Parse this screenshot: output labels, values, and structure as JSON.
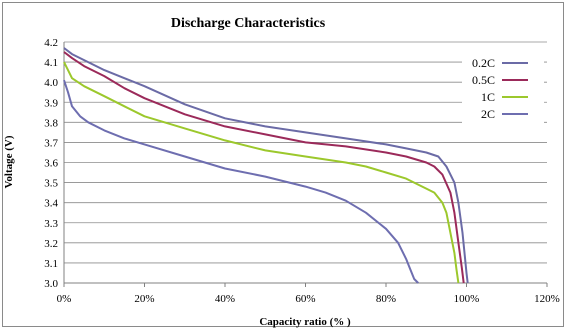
{
  "chart_data": {
    "type": "line",
    "title": "Discharge Characteristics",
    "xlabel": "Capacity ratio (% )",
    "ylabel": "Voltage (V)",
    "xlim": [
      0,
      120
    ],
    "ylim": [
      3.0,
      4.2
    ],
    "x_ticks": [
      "0%",
      "20%",
      "40%",
      "60%",
      "80%",
      "100%",
      "120%"
    ],
    "x_tick_values": [
      0,
      20,
      40,
      60,
      80,
      100,
      120
    ],
    "y_ticks": [
      "3.0",
      "3.1",
      "3.2",
      "3.3",
      "3.4",
      "3.5",
      "3.6",
      "3.7",
      "3.8",
      "3.9",
      "4.0",
      "4.1",
      "4.2"
    ],
    "y_tick_values": [
      3.0,
      3.1,
      3.2,
      3.3,
      3.4,
      3.5,
      3.6,
      3.7,
      3.8,
      3.9,
      4.0,
      4.1,
      4.2
    ],
    "grid": "horizontal",
    "legend_position": "right",
    "series": [
      {
        "name": "0.2C",
        "color": "#6b6ba6",
        "x": [
          0,
          2,
          5,
          10,
          15,
          20,
          30,
          40,
          50,
          60,
          70,
          80,
          85,
          90,
          93,
          95,
          97,
          98,
          99,
          99.5,
          100,
          100.3
        ],
        "y": [
          4.17,
          4.14,
          4.11,
          4.06,
          4.02,
          3.98,
          3.89,
          3.82,
          3.78,
          3.75,
          3.72,
          3.69,
          3.67,
          3.65,
          3.63,
          3.58,
          3.5,
          3.4,
          3.25,
          3.15,
          3.05,
          3.0
        ]
      },
      {
        "name": "0.5C",
        "color": "#9b2a5a",
        "x": [
          0,
          2,
          5,
          10,
          15,
          20,
          30,
          40,
          50,
          60,
          70,
          80,
          85,
          90,
          92,
          94,
          96,
          97,
          98,
          98.8,
          99.3
        ],
        "y": [
          4.15,
          4.12,
          4.08,
          4.03,
          3.97,
          3.92,
          3.84,
          3.78,
          3.74,
          3.7,
          3.68,
          3.65,
          3.63,
          3.6,
          3.58,
          3.54,
          3.45,
          3.35,
          3.2,
          3.08,
          3.0
        ]
      },
      {
        "name": "1C",
        "color": "#9cc82c",
        "x": [
          0,
          1,
          2,
          5,
          10,
          15,
          20,
          30,
          40,
          50,
          60,
          70,
          75,
          80,
          85,
          88,
          90,
          92,
          94,
          95,
          96,
          97,
          97.5,
          98
        ],
        "y": [
          4.1,
          4.06,
          4.02,
          3.98,
          3.93,
          3.88,
          3.83,
          3.77,
          3.71,
          3.66,
          3.63,
          3.6,
          3.58,
          3.55,
          3.52,
          3.49,
          3.47,
          3.45,
          3.4,
          3.35,
          3.25,
          3.15,
          3.07,
          3.0
        ]
      },
      {
        "name": "2C",
        "color": "#6e6eb0",
        "x": [
          0,
          1,
          2,
          4,
          6,
          10,
          15,
          20,
          30,
          40,
          50,
          60,
          65,
          70,
          75,
          80,
          83,
          85,
          86,
          87,
          88
        ],
        "y": [
          4.01,
          3.95,
          3.88,
          3.83,
          3.8,
          3.76,
          3.72,
          3.69,
          3.63,
          3.57,
          3.53,
          3.48,
          3.45,
          3.41,
          3.35,
          3.27,
          3.2,
          3.12,
          3.07,
          3.02,
          3.0
        ]
      }
    ]
  }
}
